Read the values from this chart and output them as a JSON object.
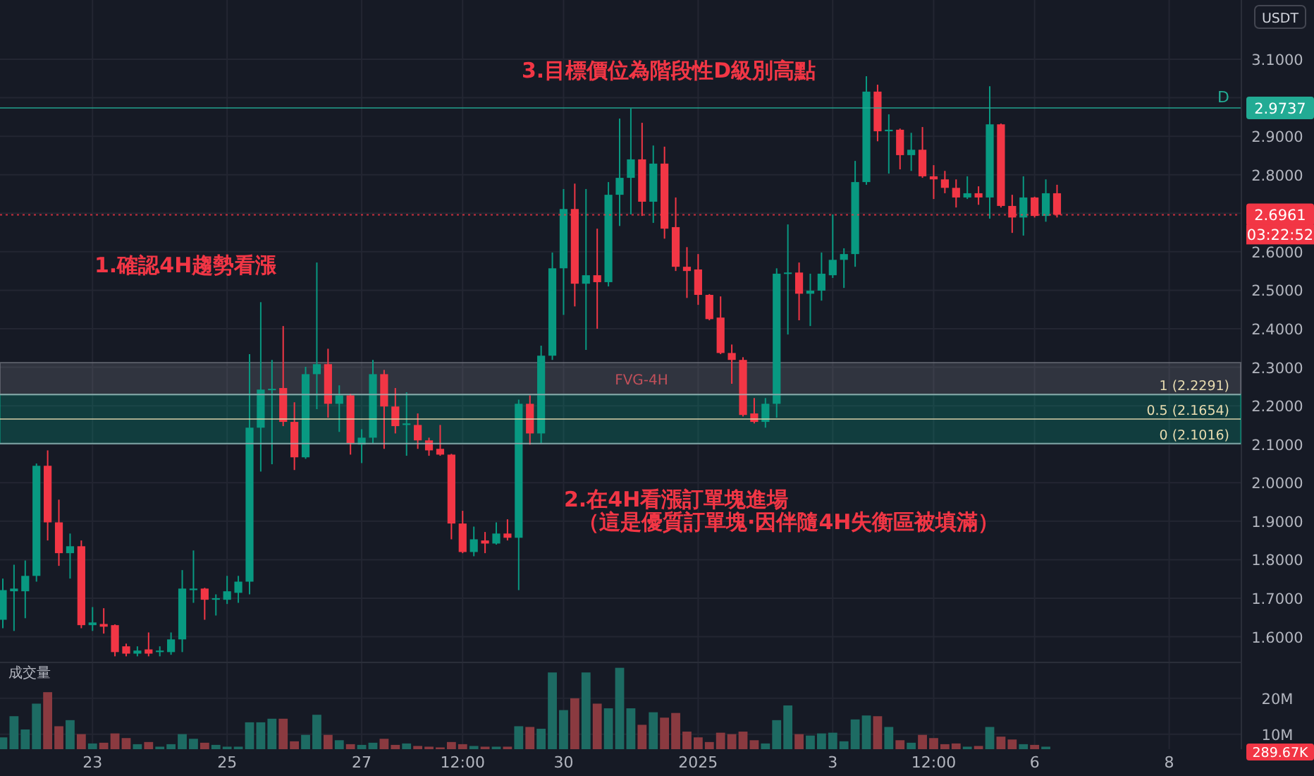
{
  "chart_data": [
    {
      "type": "candlestick",
      "x": [
        "2024-12-21T16:00",
        "2024-12-21T20:00",
        "2024-12-22T00:00",
        "2024-12-22T04:00",
        "2024-12-22T08:00",
        "2024-12-22T12:00",
        "2024-12-22T16:00",
        "2024-12-22T20:00",
        "2024-12-23T00:00",
        "2024-12-23T04:00",
        "2024-12-23T08:00",
        "2024-12-23T12:00",
        "2024-12-23T16:00",
        "2024-12-23T20:00",
        "2024-12-24T00:00",
        "2024-12-24T04:00",
        "2024-12-24T08:00",
        "2024-12-24T12:00",
        "2024-12-24T16:00",
        "2024-12-24T20:00",
        "2024-12-25T00:00",
        "2024-12-25T04:00",
        "2024-12-25T08:00",
        "2024-12-25T12:00",
        "2024-12-25T16:00",
        "2024-12-25T20:00",
        "2024-12-26T00:00",
        "2024-12-26T04:00",
        "2024-12-26T08:00",
        "2024-12-26T12:00",
        "2024-12-26T16:00",
        "2024-12-26T20:00",
        "2024-12-27T00:00",
        "2024-12-27T04:00",
        "2024-12-27T08:00",
        "2024-12-27T12:00",
        "2024-12-27T16:00",
        "2024-12-27T20:00",
        "2024-12-28T00:00",
        "2024-12-28T04:00",
        "2024-12-28T08:00",
        "2024-12-28T12:00",
        "2024-12-28T16:00",
        "2024-12-28T20:00",
        "2024-12-29T00:00",
        "2024-12-29T04:00",
        "2024-12-29T08:00",
        "2024-12-29T12:00",
        "2024-12-29T16:00",
        "2024-12-29T20:00",
        "2024-12-30T00:00",
        "2024-12-30T04:00",
        "2024-12-30T08:00",
        "2024-12-30T12:00",
        "2024-12-30T16:00",
        "2024-12-30T20:00",
        "2024-12-31T00:00",
        "2024-12-31T04:00",
        "2024-12-31T08:00",
        "2024-12-31T12:00",
        "2024-12-31T16:00",
        "2024-12-31T20:00",
        "2025-01-01T00:00",
        "2025-01-01T04:00",
        "2025-01-01T08:00",
        "2025-01-01T12:00",
        "2025-01-01T16:00",
        "2025-01-01T20:00",
        "2025-01-02T00:00",
        "2025-01-02T04:00",
        "2025-01-02T08:00",
        "2025-01-02T12:00",
        "2025-01-02T16:00",
        "2025-01-02T20:00",
        "2025-01-03T00:00",
        "2025-01-03T04:00",
        "2025-01-03T08:00",
        "2025-01-03T12:00",
        "2025-01-03T16:00",
        "2025-01-03T20:00",
        "2025-01-04T00:00",
        "2025-01-04T04:00",
        "2025-01-04T08:00",
        "2025-01-04T12:00",
        "2025-01-04T16:00",
        "2025-01-04T20:00",
        "2025-01-05T00:00",
        "2025-01-05T04:00",
        "2025-01-05T08:00",
        "2025-01-05T12:00",
        "2025-01-05T16:00",
        "2025-01-05T20:00",
        "2025-01-06T00:00",
        "2025-01-06T04:00",
        "2025-01-06T08:00"
      ],
      "ohlc": [
        [
          1.644,
          1.751,
          1.622,
          1.721
        ],
        [
          1.718,
          1.787,
          1.615,
          1.725
        ],
        [
          1.718,
          1.798,
          1.648,
          1.758
        ],
        [
          1.758,
          2.05,
          1.743,
          2.044
        ],
        [
          2.044,
          2.084,
          1.85,
          1.897
        ],
        [
          1.897,
          1.956,
          1.784,
          1.817
        ],
        [
          1.817,
          1.868,
          1.751,
          1.835
        ],
        [
          1.835,
          1.85,
          1.622,
          1.63
        ],
        [
          1.63,
          1.677,
          1.615,
          1.637
        ],
        [
          1.633,
          1.674,
          1.608,
          1.626
        ],
        [
          1.63,
          1.632,
          1.549,
          1.56
        ],
        [
          1.575,
          1.582,
          1.549,
          1.556
        ],
        [
          1.556,
          1.575,
          1.549,
          1.564
        ],
        [
          1.567,
          1.611,
          1.549,
          1.556
        ],
        [
          1.56,
          1.575,
          1.549,
          1.564
        ],
        [
          1.56,
          1.611,
          1.553,
          1.593
        ],
        [
          1.593,
          1.773,
          1.56,
          1.725
        ],
        [
          1.721,
          1.824,
          1.688,
          1.725
        ],
        [
          1.725,
          1.727,
          1.644,
          1.696
        ],
        [
          1.696,
          1.71,
          1.655,
          1.7
        ],
        [
          1.696,
          1.758,
          1.685,
          1.718
        ],
        [
          1.714,
          1.758,
          1.688,
          1.743
        ],
        [
          1.743,
          2.334,
          1.71,
          2.143
        ],
        [
          2.143,
          2.469,
          2.029,
          2.242
        ],
        [
          2.242,
          2.319,
          2.048,
          2.244
        ],
        [
          2.246,
          2.407,
          2.147,
          2.158
        ],
        [
          2.158,
          2.209,
          2.033,
          2.066
        ],
        [
          2.066,
          2.301,
          2.062,
          2.282
        ],
        [
          2.282,
          2.572,
          2.191,
          2.308
        ],
        [
          2.308,
          2.348,
          2.169,
          2.205
        ],
        [
          2.205,
          2.253,
          2.132,
          2.227
        ],
        [
          2.227,
          2.231,
          2.073,
          2.103
        ],
        [
          2.099,
          2.139,
          2.051,
          2.117
        ],
        [
          2.117,
          2.319,
          2.103,
          2.282
        ],
        [
          2.282,
          2.293,
          2.088,
          2.198
        ],
        [
          2.198,
          2.246,
          2.128,
          2.147
        ],
        [
          2.15,
          2.235,
          2.07,
          2.154
        ],
        [
          2.15,
          2.18,
          2.088,
          2.11
        ],
        [
          2.11,
          2.117,
          2.07,
          2.084
        ],
        [
          2.088,
          2.15,
          2.07,
          2.073
        ],
        [
          2.073,
          2.075,
          1.853,
          1.894
        ],
        [
          1.894,
          1.927,
          1.817,
          1.82
        ],
        [
          1.82,
          1.886,
          1.809,
          1.853
        ],
        [
          1.85,
          1.872,
          1.817,
          1.842
        ],
        [
          1.842,
          1.897,
          1.839,
          1.868
        ],
        [
          1.868,
          1.905,
          1.85,
          1.857
        ],
        [
          1.857,
          2.216,
          1.721,
          2.205
        ],
        [
          2.205,
          2.227,
          2.099,
          2.128
        ],
        [
          2.128,
          2.356,
          2.103,
          2.33
        ],
        [
          2.33,
          2.598,
          2.319,
          2.557
        ],
        [
          2.557,
          2.763,
          2.436,
          2.711
        ],
        [
          2.711,
          2.777,
          2.458,
          2.517
        ],
        [
          2.517,
          2.763,
          2.345,
          2.539
        ],
        [
          2.539,
          2.66,
          2.4,
          2.521
        ],
        [
          2.521,
          2.781,
          2.51,
          2.748
        ],
        [
          2.748,
          2.946,
          2.667,
          2.792
        ],
        [
          2.792,
          2.972,
          2.697,
          2.84
        ],
        [
          2.84,
          2.935,
          2.693,
          2.73
        ],
        [
          2.73,
          2.876,
          2.675,
          2.829
        ],
        [
          2.829,
          2.873,
          2.634,
          2.66
        ],
        [
          2.664,
          2.741,
          2.55,
          2.561
        ],
        [
          2.561,
          2.612,
          2.48,
          2.55
        ],
        [
          2.554,
          2.594,
          2.462,
          2.488
        ],
        [
          2.488,
          2.49,
          2.422,
          2.425
        ],
        [
          2.429,
          2.484,
          2.334,
          2.337
        ],
        [
          2.337,
          2.359,
          2.257,
          2.319
        ],
        [
          2.319,
          2.326,
          2.172,
          2.176
        ],
        [
          2.18,
          2.22,
          2.154,
          2.158
        ],
        [
          2.158,
          2.22,
          2.143,
          2.205
        ],
        [
          2.205,
          2.557,
          2.169,
          2.543
        ],
        [
          2.543,
          2.671,
          2.385,
          2.546
        ],
        [
          2.546,
          2.572,
          2.422,
          2.491
        ],
        [
          2.491,
          2.543,
          2.407,
          2.499
        ],
        [
          2.499,
          2.598,
          2.473,
          2.543
        ],
        [
          2.539,
          2.697,
          2.532,
          2.579
        ],
        [
          2.579,
          2.609,
          2.506,
          2.594
        ],
        [
          2.594,
          2.836,
          2.561,
          2.781
        ],
        [
          2.781,
          3.056,
          2.774,
          3.016
        ],
        [
          3.016,
          3.034,
          2.887,
          2.913
        ],
        [
          2.913,
          2.957,
          2.803,
          2.917
        ],
        [
          2.917,
          2.92,
          2.814,
          2.851
        ],
        [
          2.851,
          2.909,
          2.81,
          2.865
        ],
        [
          2.865,
          2.924,
          2.792,
          2.796
        ],
        [
          2.796,
          2.825,
          2.737,
          2.788
        ],
        [
          2.788,
          2.81,
          2.752,
          2.766
        ],
        [
          2.766,
          2.788,
          2.715,
          2.741
        ],
        [
          2.741,
          2.796,
          2.737,
          2.752
        ],
        [
          2.752,
          2.77,
          2.722,
          2.741
        ],
        [
          2.741,
          3.03,
          2.686,
          2.931
        ],
        [
          2.931,
          2.933,
          2.715,
          2.719
        ],
        [
          2.719,
          2.748,
          2.649,
          2.689
        ],
        [
          2.689,
          2.796,
          2.642,
          2.741
        ],
        [
          2.741,
          2.743,
          2.689,
          2.693
        ],
        [
          2.693,
          2.788,
          2.678,
          2.752
        ],
        [
          2.752,
          2.774,
          2.689,
          2.6961
        ]
      ],
      "colors": [
        "#089981",
        "#089981",
        "#089981",
        "#089981",
        "#f23645",
        "#f23645",
        "#089981",
        "#f23645",
        "#089981",
        "#f23645",
        "#f23645",
        "#f23645",
        "#089981",
        "#f23645",
        "#089981",
        "#089981",
        "#089981",
        "#089981",
        "#f23645",
        "#089981",
        "#089981",
        "#089981",
        "#089981",
        "#089981",
        "#089981",
        "#f23645",
        "#f23645",
        "#089981",
        "#089981",
        "#f23645",
        "#089981",
        "#f23645",
        "#089981",
        "#089981",
        "#f23645",
        "#f23645",
        "#089981",
        "#f23645",
        "#f23645",
        "#f23645",
        "#f23645",
        "#f23645",
        "#089981",
        "#f23645",
        "#089981",
        "#f23645",
        "#089981",
        "#f23645",
        "#089981",
        "#089981",
        "#089981",
        "#f23645",
        "#089981",
        "#f23645",
        "#089981",
        "#089981",
        "#089981",
        "#f23645",
        "#089981",
        "#f23645",
        "#f23645",
        "#f23645",
        "#f23645",
        "#f23645",
        "#f23645",
        "#f23645",
        "#f23645",
        "#f23645",
        "#089981",
        "#089981",
        "#089981",
        "#f23645",
        "#089981",
        "#089981",
        "#089981",
        "#089981",
        "#089981",
        "#089981",
        "#f23645",
        "#089981",
        "#f23645",
        "#089981",
        "#f23645",
        "#f23645",
        "#f23645",
        "#f23645",
        "#089981",
        "#f23645",
        "#089981",
        "#f23645",
        "#f23645",
        "#089981",
        "#f23645",
        "#089981",
        "#f23645"
      ],
      "xlim": [
        "2024-12-21T15:00",
        "2025-01-09T01:30"
      ],
      "ylim": [
        1.535,
        3.254
      ],
      "xticks": [
        "2024-12-23",
        "2024-12-25",
        "2024-12-27",
        "2024-12-28T12:00",
        "2024-12-30",
        "2025-01-01",
        "2025-01-03",
        "2025-01-04T12:00",
        "2025-01-06",
        "2025-01-08"
      ],
      "yticks": [
        {
          "value": 1.6,
          "label": "1.6000"
        },
        {
          "value": 1.7,
          "label": "1.7000"
        },
        {
          "value": 1.8,
          "label": "1.8000"
        },
        {
          "value": 1.9,
          "label": "1.9000"
        },
        {
          "value": 2.0,
          "label": "2.0000"
        },
        {
          "value": 2.1,
          "label": "2.1000"
        },
        {
          "value": 2.2,
          "label": "2.2000"
        },
        {
          "value": 2.3,
          "label": "2.3000"
        },
        {
          "value": 2.4,
          "label": "2.4000"
        },
        {
          "value": 2.5,
          "label": "2.5000"
        },
        {
          "value": 2.6,
          "label": "2.6000"
        },
        {
          "value": 2.7,
          "label": null
        },
        {
          "value": 2.8,
          "label": "2.8000"
        },
        {
          "value": 2.9,
          "label": "2.9000"
        },
        {
          "value": 3.0,
          "label": null
        },
        {
          "value": 3.1,
          "label": "3.1000"
        }
      ],
      "grid": true,
      "tick_labels": "y",
      "ylabel": "USDT",
      "annotations": [
        "1.確認4H趨勢看漲",
        "2.在4H看漲訂單塊進場",
        "（這是優質訂單塊·因伴隨4H失衡區被填滿）",
        "3.目標價位為階段性D級別高點",
        "03:22:52",
        "2.9737"
      ],
      "ref_lines": [
        {
          "axis": "y",
          "value": 2.9737,
          "label": "D",
          "color": "#22ab94"
        },
        {
          "axis": "y",
          "value": 2.6961,
          "label": "2.6961",
          "color": "#f23645",
          "line_style": "dotted"
        },
        {
          "axis": "y",
          "value": 2.2291,
          "label": "1 (2.2291)"
        },
        {
          "axis": "y",
          "value": 2.1654,
          "label": "0.5 (2.1654)",
          "color": "#e8dcb0"
        },
        {
          "axis": "y",
          "value": 2.1016,
          "label": "0 (2.1016)"
        }
      ],
      "bands": [
        {
          "axis": "y",
          "from": 2.2291,
          "to": 2.312,
          "label": "FVG-4H",
          "color": "#787b86"
        },
        {
          "axis": "y",
          "from": 2.1016,
          "to": 2.2291,
          "color": "#089981"
        }
      ]
    },
    {
      "type": "bar",
      "title": "成交量",
      "x": [
        "2024-12-21T16:00",
        "2024-12-21T20:00",
        "2024-12-22T00:00",
        "2024-12-22T04:00",
        "2024-12-22T08:00",
        "2024-12-22T12:00",
        "2024-12-22T16:00",
        "2024-12-22T20:00",
        "2024-12-23T00:00",
        "2024-12-23T04:00",
        "2024-12-23T08:00",
        "2024-12-23T12:00",
        "2024-12-23T16:00",
        "2024-12-23T20:00",
        "2024-12-24T00:00",
        "2024-12-24T04:00",
        "2024-12-24T08:00",
        "2024-12-24T12:00",
        "2024-12-24T16:00",
        "2024-12-24T20:00",
        "2024-12-25T00:00",
        "2024-12-25T04:00",
        "2024-12-25T08:00",
        "2024-12-25T12:00",
        "2024-12-25T16:00",
        "2024-12-25T20:00",
        "2024-12-26T00:00",
        "2024-12-26T04:00",
        "2024-12-26T08:00",
        "2024-12-26T12:00",
        "2024-12-26T16:00",
        "2024-12-26T20:00",
        "2024-12-27T00:00",
        "2024-12-27T04:00",
        "2024-12-27T08:00",
        "2024-12-27T12:00",
        "2024-12-27T16:00",
        "2024-12-27T20:00",
        "2024-12-28T00:00",
        "2024-12-28T04:00",
        "2024-12-28T08:00",
        "2024-12-28T12:00",
        "2024-12-28T16:00",
        "2024-12-28T20:00",
        "2024-12-29T00:00",
        "2024-12-29T04:00",
        "2024-12-29T08:00",
        "2024-12-29T12:00",
        "2024-12-29T16:00",
        "2024-12-29T20:00",
        "2024-12-30T00:00",
        "2024-12-30T04:00",
        "2024-12-30T08:00",
        "2024-12-30T12:00",
        "2024-12-30T16:00",
        "2024-12-30T20:00",
        "2024-12-31T00:00",
        "2024-12-31T04:00",
        "2024-12-31T08:00",
        "2024-12-31T12:00",
        "2024-12-31T16:00",
        "2024-12-31T20:00",
        "2025-01-01T00:00",
        "2025-01-01T04:00",
        "2025-01-01T08:00",
        "2025-01-01T12:00",
        "2025-01-01T16:00",
        "2025-01-01T20:00",
        "2025-01-02T00:00",
        "2025-01-02T04:00",
        "2025-01-02T08:00",
        "2025-01-02T12:00",
        "2025-01-02T16:00",
        "2025-01-02T20:00",
        "2025-01-03T00:00",
        "2025-01-03T04:00",
        "2025-01-03T08:00",
        "2025-01-03T12:00",
        "2025-01-03T16:00",
        "2025-01-03T20:00",
        "2025-01-04T00:00",
        "2025-01-04T04:00",
        "2025-01-04T08:00",
        "2025-01-04T12:00",
        "2025-01-04T16:00",
        "2025-01-04T20:00",
        "2025-01-05T00:00",
        "2025-01-05T04:00",
        "2025-01-05T08:00",
        "2025-01-05T12:00",
        "2025-01-05T16:00",
        "2025-01-05T20:00",
        "2025-01-06T00:00",
        "2025-01-06T04:00"
      ],
      "values": [
        9.1,
        15.0,
        11.3,
        18.5,
        21.7,
        12.2,
        13.9,
        10.0,
        7.4,
        7.6,
        10.2,
        8.9,
        7.2,
        7.8,
        6.5,
        7.2,
        10.0,
        8.7,
        7.6,
        7.0,
        6.5,
        6.5,
        13.3,
        13.3,
        14.3,
        14.3,
        8.0,
        9.8,
        15.4,
        9.8,
        8.3,
        7.2,
        7.0,
        7.6,
        8.7,
        7.0,
        7.4,
        6.7,
        6.5,
        6.3,
        7.8,
        7.2,
        6.7,
        6.5,
        6.5,
        6.5,
        12.2,
        12.0,
        11.5,
        27.2,
        16.7,
        20.0,
        27.2,
        18.5,
        17.2,
        28.5,
        17.2,
        12.6,
        16.1,
        14.6,
        15.9,
        10.7,
        9.1,
        7.8,
        10.4,
        10.0,
        10.7,
        8.3,
        7.4,
        13.9,
        18.0,
        10.0,
        9.6,
        10.2,
        10.4,
        8.0,
        14.1,
        15.2,
        15.0,
        12.0,
        8.3,
        7.6,
        9.8,
        8.9,
        7.2,
        7.4,
        6.5,
        6.7,
        12.0,
        9.3,
        8.5,
        7.2,
        7.0,
        6.5
      ],
      "colors": [
        "#1d6b63",
        "#1d6b63",
        "#1d6b63",
        "#1d6b63",
        "#8a3a40",
        "#8a3a40",
        "#1d6b63",
        "#8a3a40",
        "#1d6b63",
        "#8a3a40",
        "#8a3a40",
        "#8a3a40",
        "#1d6b63",
        "#8a3a40",
        "#1d6b63",
        "#1d6b63",
        "#1d6b63",
        "#1d6b63",
        "#8a3a40",
        "#1d6b63",
        "#1d6b63",
        "#1d6b63",
        "#1d6b63",
        "#1d6b63",
        "#1d6b63",
        "#8a3a40",
        "#8a3a40",
        "#1d6b63",
        "#1d6b63",
        "#8a3a40",
        "#1d6b63",
        "#8a3a40",
        "#1d6b63",
        "#1d6b63",
        "#8a3a40",
        "#8a3a40",
        "#1d6b63",
        "#8a3a40",
        "#8a3a40",
        "#8a3a40",
        "#8a3a40",
        "#8a3a40",
        "#1d6b63",
        "#8a3a40",
        "#1d6b63",
        "#8a3a40",
        "#1d6b63",
        "#8a3a40",
        "#1d6b63",
        "#1d6b63",
        "#1d6b63",
        "#8a3a40",
        "#1d6b63",
        "#8a3a40",
        "#1d6b63",
        "#1d6b63",
        "#1d6b63",
        "#8a3a40",
        "#1d6b63",
        "#8a3a40",
        "#8a3a40",
        "#8a3a40",
        "#8a3a40",
        "#8a3a40",
        "#8a3a40",
        "#8a3a40",
        "#8a3a40",
        "#8a3a40",
        "#1d6b63",
        "#1d6b63",
        "#1d6b63",
        "#8a3a40",
        "#1d6b63",
        "#1d6b63",
        "#1d6b63",
        "#1d6b63",
        "#1d6b63",
        "#1d6b63",
        "#8a3a40",
        "#1d6b63",
        "#8a3a40",
        "#1d6b63",
        "#8a3a40",
        "#8a3a40",
        "#8a3a40",
        "#8a3a40",
        "#1d6b63",
        "#8a3a40",
        "#1d6b63",
        "#8a3a40",
        "#8a3a40",
        "#1d6b63",
        "#8a3a40",
        "#1d6b63"
      ],
      "xlim": [
        "2024-12-21T15:00",
        "2025-01-09T01:30"
      ],
      "ylim": [
        5.8,
        29.8
      ],
      "xticks": [
        {
          "value": "2024-12-23",
          "label": "23"
        },
        {
          "value": "2024-12-25",
          "label": "25"
        },
        {
          "value": "2024-12-27",
          "label": "27"
        },
        {
          "value": "2024-12-28T12:00",
          "label": "12:00"
        },
        {
          "value": "2024-12-30",
          "label": "30"
        },
        {
          "value": "2025-01-01",
          "label": "2025"
        },
        {
          "value": "2025-01-03",
          "label": "3"
        },
        {
          "value": "2025-01-04T12:00",
          "label": "12:00"
        },
        {
          "value": "2025-01-06",
          "label": "6"
        },
        {
          "value": "2025-01-08",
          "label": "8"
        }
      ],
      "yticks": [
        {
          "value": 10,
          "label": "10M"
        },
        {
          "value": 20,
          "label": "20M"
        }
      ],
      "grid": true,
      "annotations": [
        "289.67K"
      ]
    }
  ]
}
